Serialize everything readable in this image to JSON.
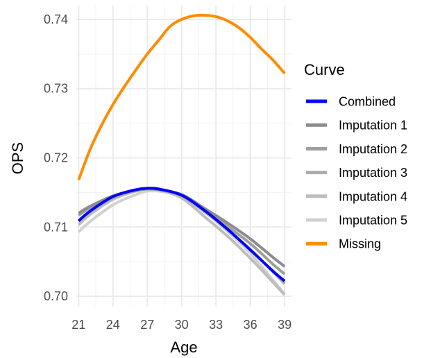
{
  "chart_data": {
    "type": "line",
    "xlabel": "Age",
    "ylabel": "OPS",
    "xlim": [
      20.8,
      39.6
    ],
    "ylim": [
      0.6985,
      0.742
    ],
    "x_ticks": [
      21,
      24,
      27,
      30,
      33,
      36,
      39
    ],
    "y_ticks": [
      0.7,
      0.71,
      0.72,
      0.73,
      0.74
    ],
    "x_tick_labels": [
      "21",
      "24",
      "27",
      "30",
      "33",
      "36",
      "39"
    ],
    "y_tick_labels": [
      "0.70",
      "0.71",
      "0.72",
      "0.73",
      "0.74"
    ],
    "grid": true,
    "legend": {
      "title": "Curve",
      "position": "right"
    },
    "series": [
      {
        "name": "Imputation 1",
        "color": "#8c8c8c",
        "x": [
          21,
          22,
          24,
          26,
          27,
          28,
          30,
          32,
          34,
          36,
          38,
          39
        ],
        "y": [
          0.712,
          0.713,
          0.7145,
          0.7153,
          0.7155,
          0.7154,
          0.7147,
          0.7127,
          0.7106,
          0.7083,
          0.7056,
          0.7043
        ]
      },
      {
        "name": "Imputation 2",
        "color": "#9e9e9e",
        "x": [
          21,
          22,
          24,
          26,
          27,
          28,
          30,
          32,
          34,
          36,
          38,
          39
        ],
        "y": [
          0.7117,
          0.7128,
          0.7144,
          0.7153,
          0.7155,
          0.7154,
          0.7146,
          0.7124,
          0.7101,
          0.7076,
          0.7046,
          0.7032
        ]
      },
      {
        "name": "Imputation 3",
        "color": "#adadad",
        "x": [
          21,
          22,
          24,
          26,
          27,
          28,
          30,
          32,
          34,
          36,
          38,
          39
        ],
        "y": [
          0.7108,
          0.7122,
          0.7142,
          0.7153,
          0.7155,
          0.7154,
          0.7145,
          0.7122,
          0.7096,
          0.7068,
          0.7035,
          0.7018
        ]
      },
      {
        "name": "Imputation 4",
        "color": "#bdbdbd",
        "x": [
          21,
          22,
          24,
          26,
          27,
          28,
          30,
          32,
          34,
          36,
          38,
          39
        ],
        "y": [
          0.7103,
          0.7118,
          0.714,
          0.7152,
          0.7155,
          0.7154,
          0.7142,
          0.7115,
          0.7087,
          0.7055,
          0.702,
          0.7002
        ]
      },
      {
        "name": "Imputation 5",
        "color": "#d1d1d1",
        "x": [
          21,
          22,
          24,
          26,
          27,
          28,
          30,
          32,
          34,
          36,
          38,
          39
        ],
        "y": [
          0.7093,
          0.7108,
          0.7132,
          0.7147,
          0.7152,
          0.7152,
          0.7144,
          0.7122,
          0.7094,
          0.7062,
          0.7023,
          0.7003
        ]
      },
      {
        "name": "Combined",
        "color": "#0000ff",
        "x": [
          21,
          22,
          24,
          26,
          27,
          28,
          30,
          32,
          34,
          36,
          38,
          39
        ],
        "y": [
          0.7109,
          0.7123,
          0.7144,
          0.7154,
          0.7156,
          0.7155,
          0.7146,
          0.7124,
          0.7097,
          0.7067,
          0.7036,
          0.7022
        ]
      },
      {
        "name": "Missing",
        "color": "#ff8c00",
        "x": [
          21,
          22,
          23,
          24,
          25,
          26,
          27,
          28,
          29,
          30,
          31,
          32,
          33,
          34,
          35,
          36,
          37,
          38,
          39
        ],
        "y": [
          0.7168,
          0.7212,
          0.7247,
          0.7277,
          0.7303,
          0.7327,
          0.735,
          0.737,
          0.739,
          0.74,
          0.7405,
          0.7406,
          0.7404,
          0.7398,
          0.7388,
          0.7374,
          0.7357,
          0.7341,
          0.7322
        ]
      }
    ],
    "legend_order": [
      "Combined",
      "Imputation 1",
      "Imputation 2",
      "Imputation 3",
      "Imputation 4",
      "Imputation 5",
      "Missing"
    ]
  }
}
